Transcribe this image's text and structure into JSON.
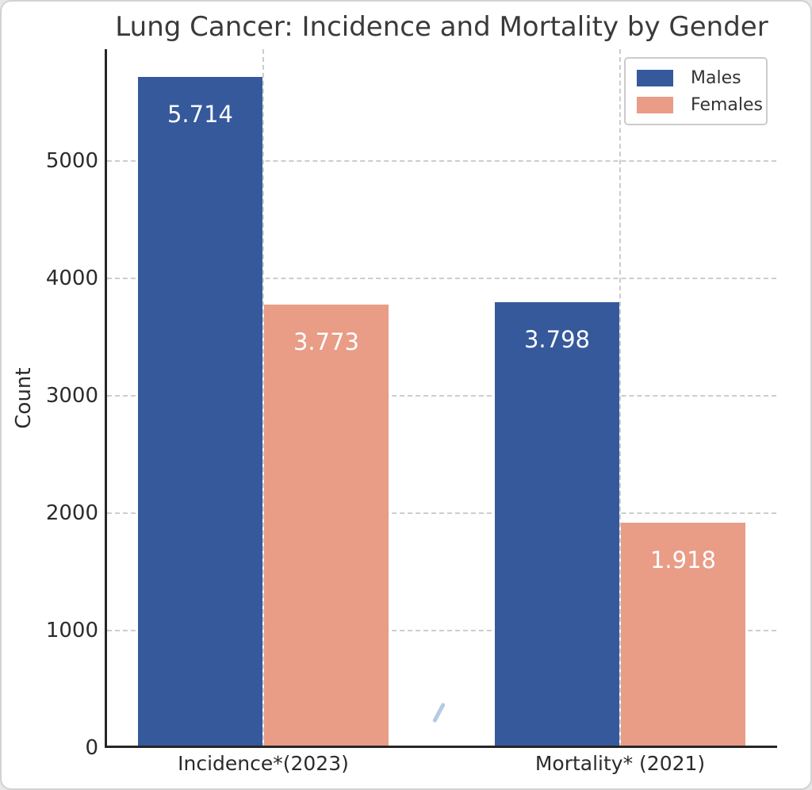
{
  "title": "Lung Cancer: Incidence and Mortality by Gender",
  "chart_data": {
    "type": "bar",
    "categories": [
      "Incidence*(2023)",
      "Mortality* (2021)"
    ],
    "series": [
      {
        "name": "Males",
        "color": "#36599c",
        "values": [
          5714,
          3798
        ],
        "labels": [
          "5.714",
          "3.798"
        ]
      },
      {
        "name": "Females",
        "color": "#e99c86",
        "values": [
          3773,
          1918
        ],
        "labels": [
          "3.773",
          "1.918"
        ]
      }
    ],
    "ylabel": "Count",
    "xlabel": "",
    "yticks": [
      0,
      1000,
      2000,
      3000,
      4000,
      5000
    ],
    "ylim": [
      0,
      5950
    ],
    "grid": true,
    "legend": {
      "position": "upper right",
      "entries": [
        "Males",
        "Females"
      ]
    }
  },
  "colors": {
    "male_bar": "#36599c",
    "female_bar": "#e99c86",
    "bar_label_text": "#ffffff",
    "grid": "#cdcdcd",
    "axis": "#262626",
    "text": "#2b2b2b",
    "legend_border": "#cccccc",
    "stray_mark": "#a9c1de"
  }
}
